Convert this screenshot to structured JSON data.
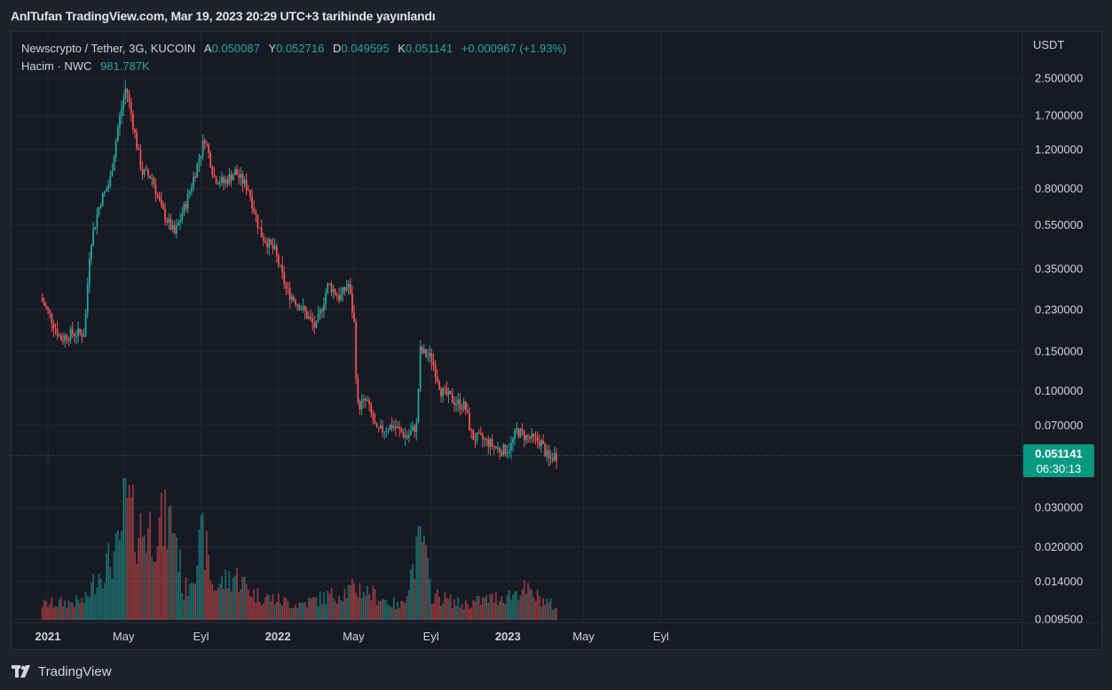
{
  "header": {
    "title": "AnlTufan TradingView.com, Mar 19, 2023 20:29 UTC+3 tarihinde yayınlandı"
  },
  "legend": {
    "symbol": "Newscrypto / Tether, 3G, KUCOIN",
    "open_label": "A",
    "open": "0.050087",
    "high_label": "Y",
    "high": "0.052716",
    "low_label": "D",
    "low": "0.049595",
    "close_label": "K",
    "close": "0.051141",
    "change": "+0.000967 (+1.93%)",
    "volume_label": "Hacim · NWC",
    "volume": "981.787K"
  },
  "price_badge": {
    "price": "0.051141",
    "countdown": "06:30:13"
  },
  "footer": {
    "brand": "TradingView"
  },
  "colors": {
    "up": "#26a69a",
    "down": "#ef5350",
    "grid": "#232734",
    "axis_text": "#d1d4dc",
    "badge": "#089981"
  },
  "chart_data": {
    "type": "candlestick",
    "scale": "log",
    "currency": "USDT",
    "y_ticks": [
      "2.500000",
      "1.700000",
      "1.200000",
      "0.800000",
      "0.550000",
      "0.350000",
      "0.230000",
      "0.150000",
      "0.100000",
      "0.070000",
      "0.030000",
      "0.020000",
      "0.014000",
      "0.009500"
    ],
    "x_ticks": [
      "2021",
      "May",
      "Eyl",
      "2022",
      "May",
      "Eyl",
      "2023",
      "May",
      "Eyl"
    ],
    "price_anchors": [
      {
        "date": "2020-12-23",
        "price": 0.26
      },
      {
        "date": "2021-01-06",
        "price": 0.22
      },
      {
        "date": "2021-01-24",
        "price": 0.17
      },
      {
        "date": "2021-02-10",
        "price": 0.18
      },
      {
        "date": "2021-03-03",
        "price": 0.18
      },
      {
        "date": "2021-03-12",
        "price": 0.45
      },
      {
        "date": "2021-03-28",
        "price": 0.7
      },
      {
        "date": "2021-04-12",
        "price": 0.85
      },
      {
        "date": "2021-04-25",
        "price": 1.5
      },
      {
        "date": "2021-05-08",
        "price": 2.3
      },
      {
        "date": "2021-05-22",
        "price": 1.4
      },
      {
        "date": "2021-06-02",
        "price": 0.95
      },
      {
        "date": "2021-06-18",
        "price": 0.9
      },
      {
        "date": "2021-07-03",
        "price": 0.65
      },
      {
        "date": "2021-07-24",
        "price": 0.5
      },
      {
        "date": "2021-08-12",
        "price": 0.7
      },
      {
        "date": "2021-08-28",
        "price": 1.0
      },
      {
        "date": "2021-09-10",
        "price": 1.35
      },
      {
        "date": "2021-09-25",
        "price": 0.9
      },
      {
        "date": "2021-10-10",
        "price": 0.85
      },
      {
        "date": "2021-10-28",
        "price": 0.95
      },
      {
        "date": "2021-11-18",
        "price": 0.8
      },
      {
        "date": "2021-12-08",
        "price": 0.5
      },
      {
        "date": "2021-12-30",
        "price": 0.42
      },
      {
        "date": "2022-01-18",
        "price": 0.28
      },
      {
        "date": "2022-02-08",
        "price": 0.24
      },
      {
        "date": "2022-03-05",
        "price": 0.19
      },
      {
        "date": "2022-03-25",
        "price": 0.3
      },
      {
        "date": "2022-04-12",
        "price": 0.26
      },
      {
        "date": "2022-04-26",
        "price": 0.3
      },
      {
        "date": "2022-05-05",
        "price": 0.2
      },
      {
        "date": "2022-05-10",
        "price": 0.085
      },
      {
        "date": "2022-05-25",
        "price": 0.09
      },
      {
        "date": "2022-06-10",
        "price": 0.065
      },
      {
        "date": "2022-07-05",
        "price": 0.07
      },
      {
        "date": "2022-07-28",
        "price": 0.062
      },
      {
        "date": "2022-08-12",
        "price": 0.07
      },
      {
        "date": "2022-08-18",
        "price": 0.15
      },
      {
        "date": "2022-09-05",
        "price": 0.14
      },
      {
        "date": "2022-09-20",
        "price": 0.1
      },
      {
        "date": "2022-10-10",
        "price": 0.09
      },
      {
        "date": "2022-10-28",
        "price": 0.085
      },
      {
        "date": "2022-11-08",
        "price": 0.062
      },
      {
        "date": "2022-11-28",
        "price": 0.06
      },
      {
        "date": "2022-12-18",
        "price": 0.055
      },
      {
        "date": "2022-12-28",
        "price": 0.054
      },
      {
        "date": "2023-01-08",
        "price": 0.056
      },
      {
        "date": "2023-01-18",
        "price": 0.066
      },
      {
        "date": "2023-02-02",
        "price": 0.062
      },
      {
        "date": "2023-02-25",
        "price": 0.059
      },
      {
        "date": "2023-03-10",
        "price": 0.049
      },
      {
        "date": "2023-03-19",
        "price": 0.0511
      }
    ],
    "volume_anchors": [
      {
        "date": "2020-12-23",
        "volume": 0.12
      },
      {
        "date": "2021-03-01",
        "volume": 0.15
      },
      {
        "date": "2021-03-20",
        "volume": 0.35
      },
      {
        "date": "2021-04-25",
        "volume": 0.55
      },
      {
        "date": "2021-05-02",
        "volume": 1.0
      },
      {
        "date": "2021-05-20",
        "volume": 0.7
      },
      {
        "date": "2021-06-20",
        "volume": 0.72
      },
      {
        "date": "2021-07-20",
        "volume": 0.78
      },
      {
        "date": "2021-08-05",
        "volume": 0.2
      },
      {
        "date": "2021-09-05",
        "volume": 0.65
      },
      {
        "date": "2021-09-20",
        "volume": 0.25
      },
      {
        "date": "2021-10-25",
        "volume": 0.35
      },
      {
        "date": "2021-11-25",
        "volume": 0.2
      },
      {
        "date": "2022-02-01",
        "volume": 0.12
      },
      {
        "date": "2022-05-10",
        "volume": 0.25
      },
      {
        "date": "2022-07-15",
        "volume": 0.1
      },
      {
        "date": "2022-08-18",
        "volume": 0.65
      },
      {
        "date": "2022-09-01",
        "volume": 0.2
      },
      {
        "date": "2022-10-20",
        "volume": 0.12
      },
      {
        "date": "2023-01-10",
        "volume": 0.2
      },
      {
        "date": "2023-01-20",
        "volume": 0.25
      },
      {
        "date": "2023-03-19",
        "volume": 0.1
      }
    ]
  }
}
